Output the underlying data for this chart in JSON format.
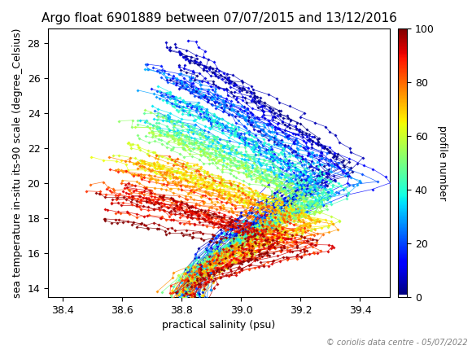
{
  "title": "Argo float 6901889 between 07/07/2015 and 13/12/2016",
  "xlabel": "practical salinity (psu)",
  "ylabel": "sea temperature in-situ its-90 scale (degree_Celsius)",
  "colorbar_label": "profile number",
  "xlim": [
    38.35,
    39.5
  ],
  "ylim": [
    13.5,
    28.8
  ],
  "xticks": [
    38.4,
    38.6,
    38.8,
    39.0,
    39.2,
    39.4
  ],
  "yticks": [
    14,
    16,
    18,
    20,
    22,
    24,
    26,
    28
  ],
  "cbar_ticks": [
    0,
    20,
    40,
    60,
    80,
    100
  ],
  "n_profiles": 100,
  "copyright": "© coriolis data centre - 05/07/2022",
  "background_color": "white",
  "title_fontsize": 11,
  "label_fontsize": 9,
  "tick_fontsize": 9,
  "cbar_fontsize": 9,
  "marker_size": 2,
  "line_width": 0.5
}
